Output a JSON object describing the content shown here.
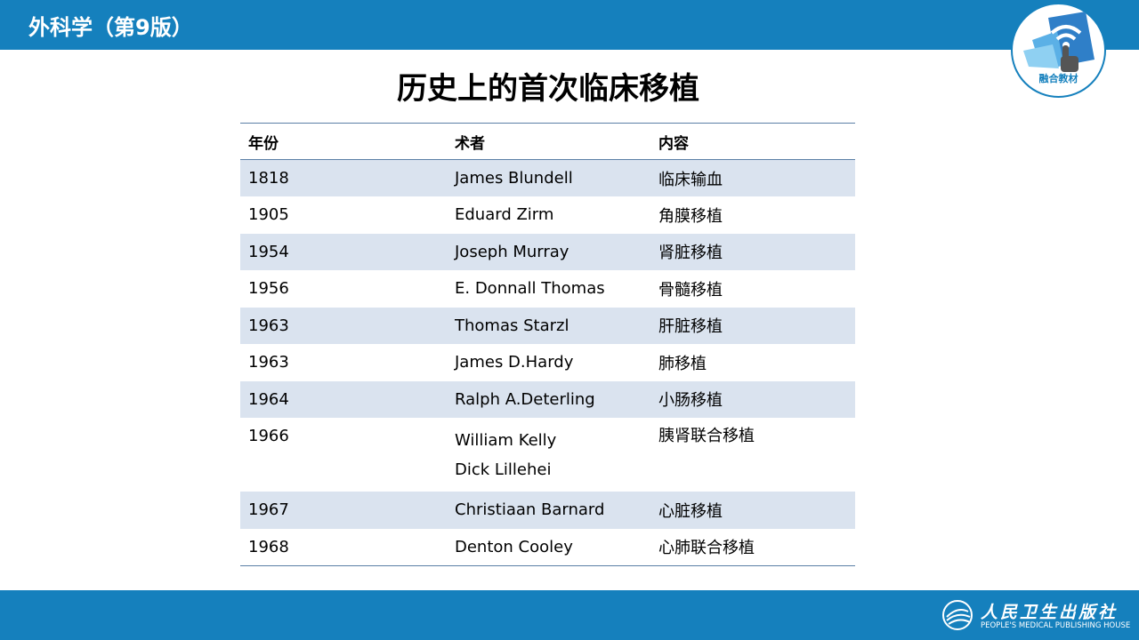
{
  "header": {
    "course_title": "外科学（第9版）",
    "badge_text": "融合教材"
  },
  "title": "历史上的首次临床移植",
  "table": {
    "columns": [
      "年份",
      "术者",
      "内容"
    ],
    "rows": [
      {
        "year": "1818",
        "surgeon": [
          "James Blundell"
        ],
        "content": "临床输血"
      },
      {
        "year": "1905",
        "surgeon": [
          "Eduard Zirm"
        ],
        "content": "角膜移植"
      },
      {
        "year": "1954",
        "surgeon": [
          "Joseph Murray"
        ],
        "content": "肾脏移植"
      },
      {
        "year": "1956",
        "surgeon": [
          "E. Donnall Thomas"
        ],
        "content": "骨髓移植"
      },
      {
        "year": "1963",
        "surgeon": [
          "Thomas Starzl"
        ],
        "content": "肝脏移植"
      },
      {
        "year": "1963",
        "surgeon": [
          "James D.Hardy"
        ],
        "content": "肺移植"
      },
      {
        "year": "1964",
        "surgeon": [
          "Ralph A.Deterling"
        ],
        "content": "小肠移植"
      },
      {
        "year": "1966",
        "surgeon": [
          "William Kelly",
          "Dick Lillehei"
        ],
        "content": "胰肾联合移植"
      },
      {
        "year": "1967",
        "surgeon": [
          "Christiaan Barnard"
        ],
        "content": "心脏移植"
      },
      {
        "year": "1968",
        "surgeon": [
          "Denton Cooley"
        ],
        "content": "心肺联合移植"
      }
    ]
  },
  "footer": {
    "publisher_cn": "人民卫生出版社",
    "publisher_en": "PEOPLE'S MEDICAL PUBLISHING HOUSE"
  },
  "colors": {
    "brand_blue": "#1580bd",
    "row_shade": "#dae3ef"
  }
}
